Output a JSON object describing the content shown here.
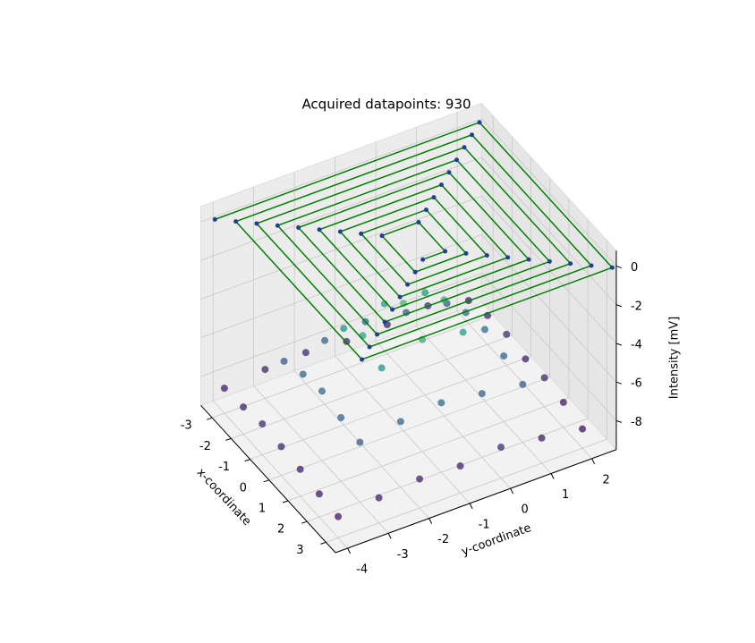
{
  "chart_data": {
    "type": "scatter3d",
    "title": "Acquired datapoints: 930",
    "xlabel": "x-coordinate",
    "ylabel": "y-coordinate",
    "zlabel": "Intensity [mV]",
    "xlim": [
      -3.6,
      3.5
    ],
    "ylim": [
      -4.3,
      2.6
    ],
    "zlim": [
      -9.5,
      0.8
    ],
    "xticks": [
      -3,
      -2,
      -1,
      0,
      1,
      2,
      3
    ],
    "yticks": [
      -4,
      -3,
      -2,
      -1,
      0,
      1,
      2
    ],
    "zticks": [
      0,
      -2,
      -4,
      -6,
      -8
    ],
    "grid": true,
    "colormap": [
      "#440154",
      "#3b528b",
      "#21918c",
      "#5ec962",
      "#fde725"
    ],
    "clim": [
      -9,
      0
    ],
    "path": {
      "color": "#008000",
      "marker_color": "#1f3f8f",
      "x": [
        -3.5,
        -3.5,
        3.5,
        3.5,
        -3.15,
        -3.15,
        3.15,
        3.15,
        -2.8,
        -2.8,
        2.8,
        2.8,
        -2.45,
        -2.45,
        2.45,
        2.45,
        -2.1,
        -2.1,
        2.1,
        2.1,
        -1.75,
        -1.75,
        1.75,
        1.75,
        -1.4,
        -1.4,
        1.4,
        1.4,
        -1.05,
        -1.05,
        1.05,
        1.05,
        -0.7,
        -0.7,
        0.7,
        0.7
      ],
      "y": [
        -4.0,
        2.5,
        2.5,
        -3.65,
        -3.65,
        2.15,
        2.15,
        -3.3,
        -3.3,
        1.8,
        1.8,
        -2.95,
        -2.95,
        1.45,
        1.45,
        -2.6,
        -2.6,
        1.1,
        1.1,
        -2.25,
        -2.25,
        0.75,
        0.75,
        -1.9,
        -1.9,
        0.4,
        0.4,
        -1.55,
        -1.55,
        0.05,
        0.05,
        -1.2,
        -1.2,
        -0.3,
        -0.3,
        -0.85
      ],
      "z": [
        0,
        0,
        0,
        0,
        0,
        0,
        0,
        0,
        0,
        0,
        0,
        0,
        0,
        0,
        0,
        0,
        0,
        0,
        0,
        0,
        0,
        0,
        0,
        0,
        0,
        0,
        0,
        0,
        0,
        0,
        0,
        0,
        0,
        0,
        0,
        0
      ]
    },
    "points": {
      "x": [
        -3,
        -3,
        -3,
        -3,
        -3,
        -3,
        -3,
        -2,
        -2,
        -2,
        -2,
        -2,
        -2,
        -2,
        -1,
        -1,
        -1,
        -1,
        -1,
        -1,
        -1,
        0,
        0,
        0,
        0,
        0,
        0,
        0,
        1,
        1,
        1,
        1,
        1,
        1,
        1,
        2,
        2,
        2,
        2,
        2,
        2,
        2,
        3,
        3,
        3,
        3,
        3,
        3,
        3
      ],
      "y": [
        -4,
        -3,
        -2,
        -1,
        0,
        1,
        2,
        -4,
        -3,
        -2,
        -1,
        0,
        1,
        2,
        -4,
        -3,
        -2,
        -1,
        0,
        1,
        2,
        -4,
        -3,
        -2,
        -1,
        0,
        1,
        2,
        -4,
        -3,
        -2,
        -1,
        0,
        1,
        2,
        -4,
        -3,
        -2,
        -1,
        0,
        1,
        2,
        -4,
        -3,
        -2,
        -1,
        0,
        1,
        2
      ],
      "z": [
        -8.2,
        -8.0,
        -7.9,
        -8.1,
        -8.0,
        -7.8,
        -8.3,
        -8.1,
        -6.5,
        -6.2,
        -6.0,
        -6.3,
        -6.6,
        -8.0,
        -7.9,
        -6.1,
        -4.5,
        -4.0,
        -4.2,
        -6.0,
        -7.9,
        -8.0,
        -5.9,
        -3.8,
        -2.9,
        -3.5,
        -5.8,
        -8.1,
        -8.1,
        -6.2,
        -4.4,
        -3.7,
        -4.1,
        -6.1,
        -8.0,
        -8.3,
        -6.4,
        -6.1,
        -5.9,
        -6.2,
        -6.5,
        -8.2,
        -8.4,
        -8.2,
        -8.0,
        -8.1,
        -7.9,
        -8.2,
        -8.5
      ]
    }
  }
}
